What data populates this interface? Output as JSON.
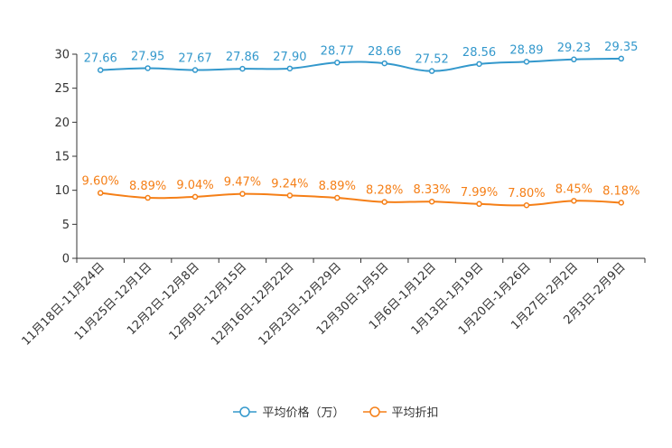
{
  "chart_data": {
    "type": "line",
    "categories": [
      "11月18日-11月24日",
      "11月25日-12月1日",
      "12月2日-12月8日",
      "12月9日-12月15日",
      "12月16日-12月22日",
      "12月23日-12月29日",
      "12月30日-1月5日",
      "1月6日-1月12日",
      "1月13日-1月19日",
      "1月20日-1月26日",
      "1月27日-2月2日",
      "2月3日-2月9日"
    ],
    "series": [
      {
        "name": "平均价格（万）",
        "color": "#3398cc",
        "values": [
          27.66,
          27.95,
          27.67,
          27.86,
          27.9,
          28.77,
          28.66,
          27.52,
          28.56,
          28.89,
          29.23,
          29.35
        ],
        "labels": [
          "27.66",
          "27.95",
          "27.67",
          "27.86",
          "27.90",
          "28.77",
          "28.66",
          "27.52",
          "28.56",
          "28.89",
          "29.23",
          "29.35"
        ]
      },
      {
        "name": "平均折扣",
        "color": "#f57f17",
        "values": [
          9.6,
          8.89,
          9.04,
          9.47,
          9.24,
          8.89,
          8.28,
          8.33,
          7.99,
          7.8,
          8.45,
          8.18
        ],
        "labels": [
          "9.60%",
          "8.89%",
          "9.04%",
          "9.47%",
          "9.24%",
          "8.89%",
          "8.28%",
          "8.33%",
          "7.99%",
          "7.80%",
          "8.45%",
          "8.18%"
        ]
      }
    ],
    "ylim": [
      0,
      30
    ],
    "yticks": [
      0,
      5,
      10,
      15,
      20,
      25,
      30
    ],
    "legend_position": "bottom-center"
  }
}
